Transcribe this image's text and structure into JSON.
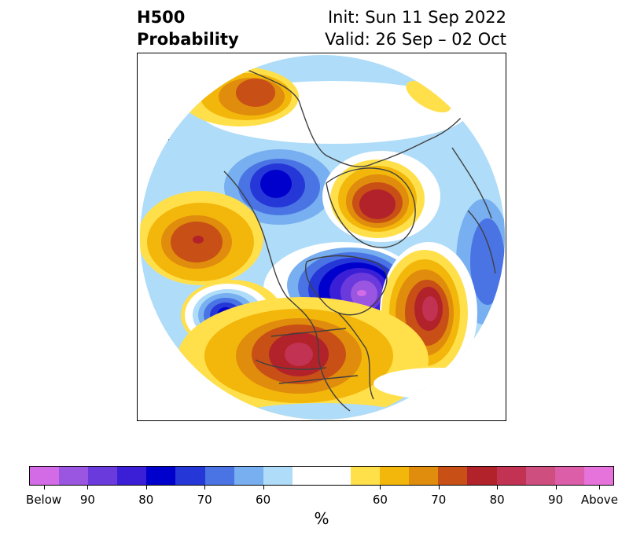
{
  "title": {
    "left_line1": "H500",
    "left_line2": "Probability",
    "right_line1": "Init: Sun 11 Sep 2022",
    "right_line2": "Valid: 26 Sep – 02 Oct"
  },
  "map": {
    "projection": "polar-stereographic",
    "region": "North America / Arctic",
    "anomaly_centers": [
      {
        "category": "above",
        "level": "70-80",
        "location": "Alaska / Bering"
      },
      {
        "category": "above",
        "level": "80-90",
        "location": "Greenland"
      },
      {
        "category": "above",
        "level": "70-80",
        "location": "North Pacific"
      },
      {
        "category": "above",
        "level": "70-80",
        "location": "North Atlantic"
      },
      {
        "category": "above",
        "level": "80-90",
        "location": "Southwest United States"
      },
      {
        "category": "below",
        "level": "above 90",
        "location": "Hudson Bay / Eastern Canada"
      },
      {
        "category": "below",
        "level": "80-90",
        "location": "Siberia"
      },
      {
        "category": "below",
        "level": "80-90",
        "location": "Gulf of Alaska"
      }
    ]
  },
  "colorbar": {
    "colors": [
      "#d36be6",
      "#9a56e0",
      "#6a3adc",
      "#3a1fd6",
      "#0000cc",
      "#2637d8",
      "#4a74e4",
      "#77aff0",
      "#afdcf8",
      "#ffffff",
      "#ffffff",
      "#ffe04a",
      "#f3b60a",
      "#e08c0c",
      "#c84f16",
      "#b2222a",
      "#c23252",
      "#cf4e80",
      "#dc5ea8",
      "#e672db"
    ],
    "tick_labels": [
      "Below",
      "90",
      "80",
      "70",
      "60",
      "60",
      "70",
      "80",
      "90",
      "Above"
    ],
    "unit_label": "%"
  }
}
